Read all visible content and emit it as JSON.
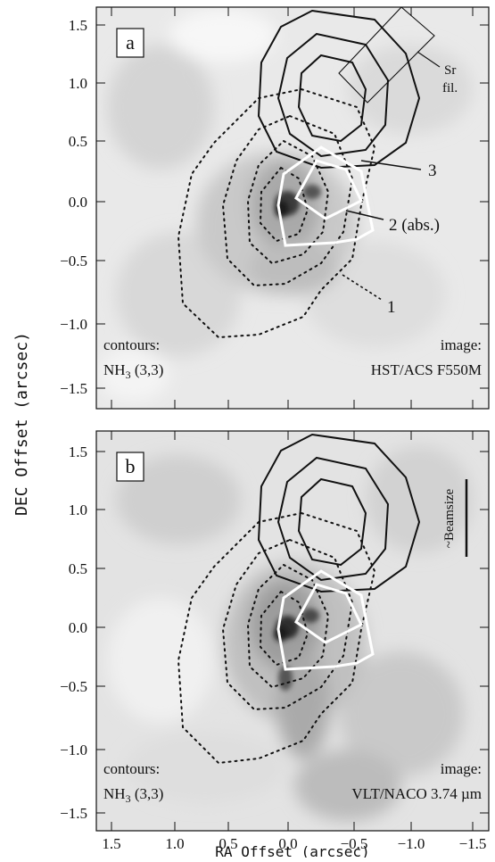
{
  "figure": {
    "y_axis_label": "DEC Offset (arcsec)",
    "x_axis_label": "RA Offset (arcsec)",
    "x_ticks": [
      "1.5",
      "1.0",
      "0.5",
      "0.0",
      "−0.5",
      "−1.0",
      "−1.5"
    ],
    "y_ticks": [
      "1.5",
      "1.0",
      "0.5",
      "0.0",
      "−0.5",
      "−1.0",
      "−1.5"
    ],
    "panels": [
      {
        "letter": "a",
        "contours_label": "contours:",
        "contours_species": "NH",
        "contours_sub": "3",
        "contours_transition": " (3,3)",
        "image_label": "image:",
        "image_source": "HST/ACS F550M",
        "slit_label_line1": "Sr",
        "slit_label_line2": "fil.",
        "callouts": [
          "3",
          "2 (abs.)",
          "1"
        ]
      },
      {
        "letter": "b",
        "contours_label": "contours:",
        "contours_species": "NH",
        "contours_sub": "3",
        "contours_transition": " (3,3)",
        "image_label": "image:",
        "image_source": "VLT/NACO 3.74 µm",
        "beamsize_label": "~Beamsize"
      }
    ]
  }
}
